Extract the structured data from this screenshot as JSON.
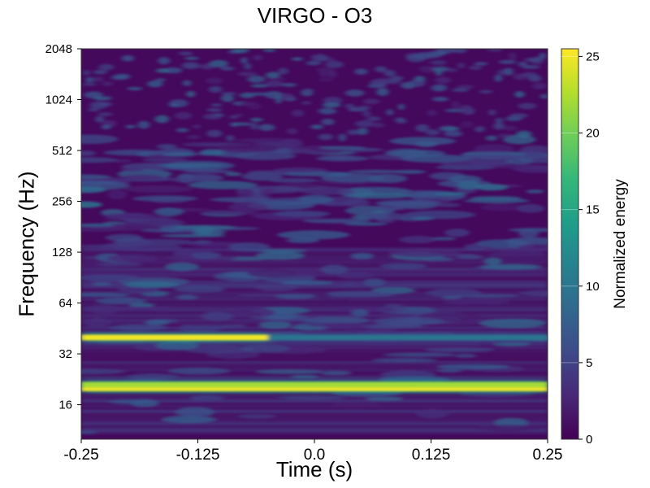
{
  "chart_data": {
    "type": "heatmap",
    "title": "VIRGO - O3",
    "xlabel": "Time (s)",
    "ylabel": "Frequency (Hz)",
    "colorbar_label": "Normalized energy",
    "colormap": "viridis",
    "y_scale": "log2",
    "xlim": [
      -0.25,
      0.25
    ],
    "ylim": [
      10,
      2048
    ],
    "x_ticks": [
      -0.25,
      -0.125,
      0.0,
      0.125,
      0.25
    ],
    "x_tick_labels": [
      "-0.25",
      "-0.125",
      "0.0",
      "0.125",
      "0.25"
    ],
    "y_ticks": [
      16,
      32,
      64,
      128,
      256,
      512,
      1024,
      2048
    ],
    "y_tick_labels": [
      "16",
      "32",
      "64",
      "128",
      "256",
      "512",
      "1024",
      "2048"
    ],
    "colorbar_range": [
      0,
      25.5
    ],
    "colorbar_ticks": [
      0,
      5,
      10,
      15,
      20,
      25
    ],
    "colorbar_tick_labels": [
      "0",
      "5",
      "10",
      "15",
      "20",
      "25"
    ],
    "bands": [
      {
        "frequency": 20,
        "energy": 25,
        "time_range": [
          -0.25,
          0.25
        ]
      },
      {
        "frequency": 21,
        "energy": 22,
        "time_range": [
          -0.25,
          0.25
        ]
      },
      {
        "frequency": 40,
        "energy": 25,
        "time_range": [
          -0.25,
          -0.05
        ]
      },
      {
        "frequency": 40,
        "energy": 10,
        "time_range": [
          -0.05,
          0.25
        ]
      }
    ]
  },
  "colors": {
    "viridis_low": "#440154",
    "viridis_high": "#fde725"
  }
}
